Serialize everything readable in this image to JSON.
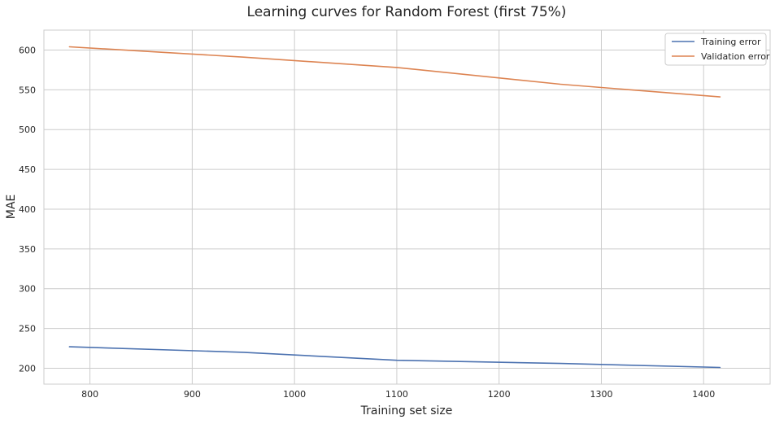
{
  "chart_data": {
    "type": "line",
    "title": "Learning curves for Random Forest (first 75%)",
    "xlabel": "Training set size",
    "ylabel": "MAE",
    "xlim": [
      755,
      1465
    ],
    "ylim": [
      180,
      625
    ],
    "xticks": [
      800,
      900,
      1000,
      1100,
      1200,
      1300,
      1400
    ],
    "yticks": [
      200,
      250,
      300,
      350,
      400,
      450,
      500,
      550,
      600
    ],
    "grid": true,
    "legend_position": "top-right",
    "series": [
      {
        "name": "Training error",
        "color": "#4c72b0",
        "x": [
          780,
          950,
          1100,
          1260,
          1416
        ],
        "y": [
          227,
          220,
          210,
          206,
          201
        ]
      },
      {
        "name": "Validation error",
        "color": "#dd8452",
        "x": [
          780,
          950,
          1100,
          1260,
          1416
        ],
        "y": [
          604,
          591,
          578,
          557,
          541
        ]
      }
    ]
  }
}
